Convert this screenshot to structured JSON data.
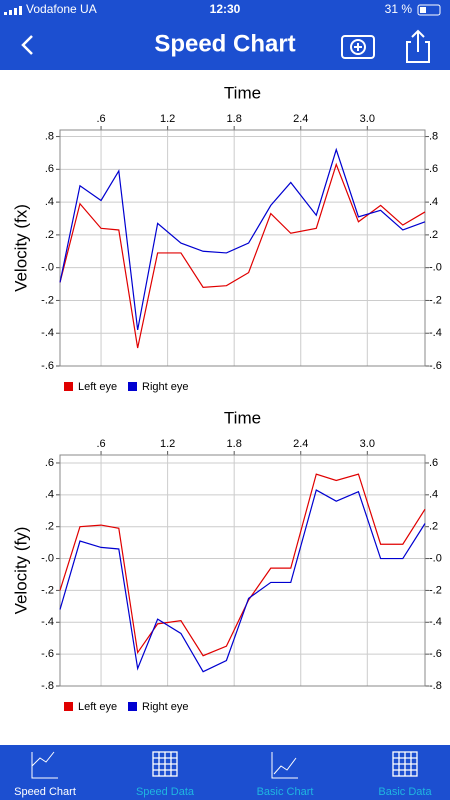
{
  "status_bar": {
    "carrier": "Vodafone UA",
    "time": "12:30",
    "battery": "31 %"
  },
  "nav_bar": {
    "title": "Speed Chart"
  },
  "chart_data": [
    {
      "type": "line",
      "xlabel": "Time",
      "ylabel": "Velocity (fx)",
      "x": [
        0.23,
        0.41,
        0.6,
        0.76,
        0.93,
        1.11,
        1.32,
        1.52,
        1.73,
        1.93,
        2.13,
        2.31,
        2.54,
        2.72,
        2.92,
        3.12,
        3.32,
        3.52
      ],
      "series": [
        {
          "name": "Left eye",
          "color": "#e00000",
          "values": [
            -0.09,
            0.39,
            0.24,
            0.23,
            -0.49,
            0.09,
            0.09,
            -0.12,
            -0.11,
            -0.03,
            0.33,
            0.21,
            0.24,
            0.63,
            0.28,
            0.38,
            0.26,
            0.34
          ]
        },
        {
          "name": "Right eye",
          "color": "#0000d0",
          "values": [
            -0.09,
            0.5,
            0.41,
            0.59,
            -0.38,
            0.27,
            0.15,
            0.1,
            0.09,
            0.15,
            0.38,
            0.52,
            0.32,
            0.72,
            0.31,
            0.35,
            0.23,
            0.28
          ]
        }
      ],
      "xlim": [
        0.23,
        3.52
      ],
      "xticks": [
        {
          "value": 0.6,
          "label": ".6"
        },
        1.2,
        1.8,
        2.4,
        {
          "value": 3.0,
          "label": "3.0"
        }
      ],
      "ylim": [
        -0.6,
        0.84
      ],
      "yticks": [
        {
          "value": 0.8,
          "label": ".8"
        },
        {
          "value": 0.6,
          "label": ".6"
        },
        {
          "value": 0.4,
          "label": ".4"
        },
        {
          "value": 0.2,
          "label": ".2"
        },
        {
          "value": 0,
          "label": "-.0"
        },
        {
          "value": -0.2,
          "label": "-.2"
        },
        {
          "value": -0.4,
          "label": "-.4"
        },
        {
          "value": -0.6,
          "label": "-.6"
        }
      ],
      "grid": true
    },
    {
      "type": "line",
      "xlabel": "Time",
      "ylabel": "Velocity (fy)",
      "x": [
        0.23,
        0.41,
        0.6,
        0.76,
        0.93,
        1.11,
        1.32,
        1.52,
        1.73,
        1.93,
        2.13,
        2.31,
        2.54,
        2.72,
        2.92,
        3.12,
        3.32,
        3.52
      ],
      "series": [
        {
          "name": "Left eye",
          "color": "#e00000",
          "values": [
            -0.2,
            0.2,
            0.21,
            0.19,
            -0.59,
            -0.41,
            -0.39,
            -0.61,
            -0.55,
            -0.26,
            -0.06,
            -0.06,
            0.53,
            0.49,
            0.53,
            0.09,
            0.09,
            0.31
          ]
        },
        {
          "name": "Right eye",
          "color": "#0000d0",
          "values": [
            -0.32,
            0.11,
            0.07,
            0.06,
            -0.69,
            -0.38,
            -0.47,
            -0.71,
            -0.64,
            -0.25,
            -0.15,
            -0.15,
            0.43,
            0.36,
            0.42,
            0,
            0,
            0.22
          ]
        }
      ],
      "xlim": [
        0.23,
        3.52
      ],
      "xticks": [
        {
          "value": 0.6,
          "label": ".6"
        },
        1.2,
        1.8,
        2.4,
        {
          "value": 3.0,
          "label": "3.0"
        }
      ],
      "ylim": [
        -0.8,
        0.65
      ],
      "yticks": [
        {
          "value": 0.6,
          "label": ".6"
        },
        {
          "value": 0.4,
          "label": ".4"
        },
        {
          "value": 0.2,
          "label": ".2"
        },
        {
          "value": 0,
          "label": "-.0"
        },
        {
          "value": -0.2,
          "label": "-.2"
        },
        {
          "value": -0.4,
          "label": "-.4"
        },
        {
          "value": -0.6,
          "label": "-.6"
        },
        {
          "value": -0.8,
          "label": "-.8"
        }
      ],
      "grid": true
    }
  ],
  "tab_bar": {
    "items": [
      "Speed Chart",
      "Speed Data",
      "Basic Chart",
      "Basic Data"
    ]
  }
}
